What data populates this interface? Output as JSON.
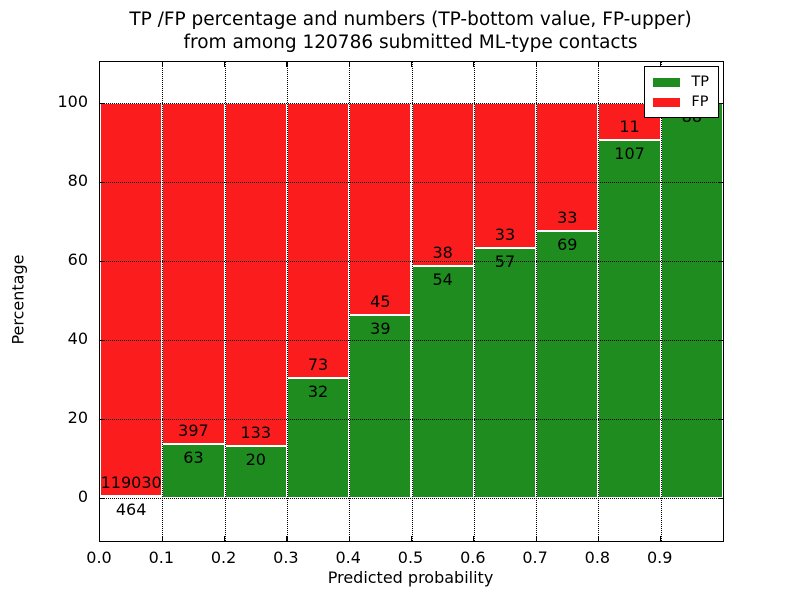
{
  "chart_data": {
    "type": "bar",
    "stacked": true,
    "title_line1": "TP /FP percentage and numbers (TP-bottom value, FP-upper)",
    "title_line2": "from among 120786 submitted ML-type contacts",
    "xlabel": "Predicted probability",
    "ylabel": "Percentage",
    "x_tick_labels": [
      "0.0",
      "0.1",
      "0.2",
      "0.3",
      "0.4",
      "0.5",
      "0.6",
      "0.7",
      "0.8",
      "0.9"
    ],
    "y_tick_values": [
      0,
      20,
      40,
      60,
      80,
      100
    ],
    "y_tick_labels": [
      "0",
      "20",
      "40",
      "60",
      "80",
      "100"
    ],
    "ylim": [
      -10.9,
      110.4
    ],
    "xlim": [
      0.0,
      1.0
    ],
    "bin_width": 0.1,
    "grid": "dotted",
    "legend_position": "upper right",
    "series": [
      {
        "name": "TP",
        "color": "#1e8c1e",
        "counts": [
          464,
          63,
          20,
          32,
          39,
          54,
          57,
          69,
          107,
          88
        ],
        "labels": [
          "464",
          "63",
          "20",
          "32",
          "39",
          "54",
          "57",
          "69",
          "107",
          "88"
        ]
      },
      {
        "name": "FP",
        "color": "#fb1d1d",
        "counts": [
          119030,
          397,
          133,
          73,
          45,
          38,
          33,
          33,
          11,
          0
        ],
        "labels": [
          "119030",
          "397",
          "133",
          "73",
          "45",
          "38",
          "33",
          "33",
          "11",
          ""
        ]
      }
    ],
    "tp_percent": [
      0.39,
      13.7,
      13.07,
      30.48,
      46.43,
      58.7,
      63.33,
      67.65,
      90.68,
      100.0
    ],
    "legend": {
      "entries": [
        {
          "label": "TP",
          "color": "#1e8c1e"
        },
        {
          "label": "FP",
          "color": "#fb1d1d"
        }
      ]
    }
  }
}
